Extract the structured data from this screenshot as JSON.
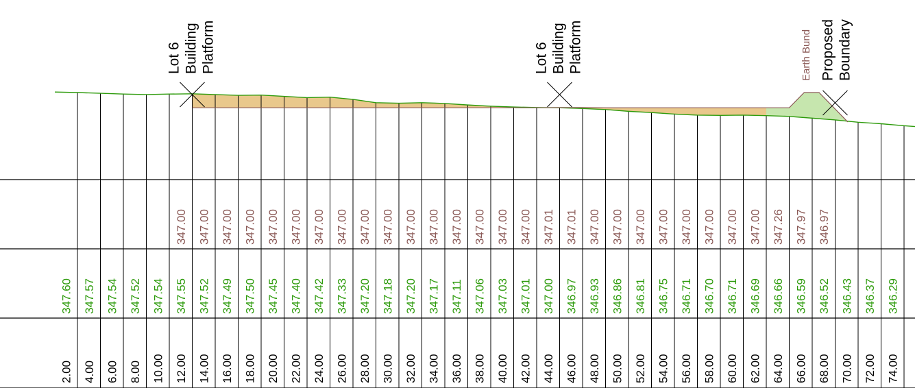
{
  "colors": {
    "design": "#8b5a57",
    "ground": "#2e9b0c",
    "chainage": "#000000",
    "fill": "#e9c88c",
    "bund_fill": "#c6e6ae",
    "grid": "#000000"
  },
  "annotations": [
    {
      "id": "lot6-a",
      "lines": [
        "Lot 6",
        "Building",
        "Platform"
      ],
      "chainage": 12,
      "color": "#000000"
    },
    {
      "id": "lot6-b",
      "lines": [
        "Lot 6",
        "Building",
        "Platform"
      ],
      "chainage": 44,
      "color": "#000000"
    },
    {
      "id": "earth-bund",
      "lines": [
        "Earth Bund"
      ],
      "chainage": 66,
      "color": "#8b5a57"
    },
    {
      "id": "proposed-boundary",
      "lines": [
        "Proposed",
        "Boundary"
      ],
      "chainage": 68,
      "color": "#000000"
    }
  ],
  "stations": [
    {
      "chainage": "2.00",
      "ground": "347.60",
      "design": ""
    },
    {
      "chainage": "4.00",
      "ground": "347.57",
      "design": ""
    },
    {
      "chainage": "6.00",
      "ground": "347.54",
      "design": ""
    },
    {
      "chainage": "8.00",
      "ground": "347.52",
      "design": ""
    },
    {
      "chainage": "10.00",
      "ground": "347.54",
      "design": ""
    },
    {
      "chainage": "12.00",
      "ground": "347.55",
      "design": "347.00"
    },
    {
      "chainage": "14.00",
      "ground": "347.52",
      "design": "347.00"
    },
    {
      "chainage": "16.00",
      "ground": "347.49",
      "design": "347.00"
    },
    {
      "chainage": "18.00",
      "ground": "347.50",
      "design": "347.00"
    },
    {
      "chainage": "20.00",
      "ground": "347.45",
      "design": "347.00"
    },
    {
      "chainage": "22.00",
      "ground": "347.40",
      "design": "347.00"
    },
    {
      "chainage": "24.00",
      "ground": "347.42",
      "design": "347.00"
    },
    {
      "chainage": "26.00",
      "ground": "347.33",
      "design": "347.00"
    },
    {
      "chainage": "28.00",
      "ground": "347.20",
      "design": "347.00"
    },
    {
      "chainage": "30.00",
      "ground": "347.18",
      "design": "347.00"
    },
    {
      "chainage": "32.00",
      "ground": "347.20",
      "design": "347.00"
    },
    {
      "chainage": "34.00",
      "ground": "347.17",
      "design": "347.00"
    },
    {
      "chainage": "36.00",
      "ground": "347.11",
      "design": "347.00"
    },
    {
      "chainage": "38.00",
      "ground": "347.06",
      "design": "347.00"
    },
    {
      "chainage": "40.00",
      "ground": "347.03",
      "design": "347.00"
    },
    {
      "chainage": "42.00",
      "ground": "347.01",
      "design": "347.00"
    },
    {
      "chainage": "44.00",
      "ground": "347.00",
      "design": "347.01"
    },
    {
      "chainage": "46.00",
      "ground": "346.97",
      "design": "347.01"
    },
    {
      "chainage": "48.00",
      "ground": "346.93",
      "design": "347.00"
    },
    {
      "chainage": "50.00",
      "ground": "346.86",
      "design": "347.00"
    },
    {
      "chainage": "52.00",
      "ground": "346.81",
      "design": "347.00"
    },
    {
      "chainage": "54.00",
      "ground": "346.75",
      "design": "347.00"
    },
    {
      "chainage": "56.00",
      "ground": "346.71",
      "design": "347.00"
    },
    {
      "chainage": "58.00",
      "ground": "346.70",
      "design": "347.00"
    },
    {
      "chainage": "60.00",
      "ground": "346.71",
      "design": "347.00"
    },
    {
      "chainage": "62.00",
      "ground": "346.69",
      "design": "347.00"
    },
    {
      "chainage": "64.00",
      "ground": "346.66",
      "design": "347.26"
    },
    {
      "chainage": "66.00",
      "ground": "346.59",
      "design": "347.97"
    },
    {
      "chainage": "68.00",
      "ground": "346.52",
      "design": "346.97"
    },
    {
      "chainage": "70.00",
      "ground": "346.43",
      "design": ""
    },
    {
      "chainage": "72.00",
      "ground": "346.37",
      "design": ""
    },
    {
      "chainage": "74.00",
      "ground": "346.29",
      "design": ""
    }
  ]
}
